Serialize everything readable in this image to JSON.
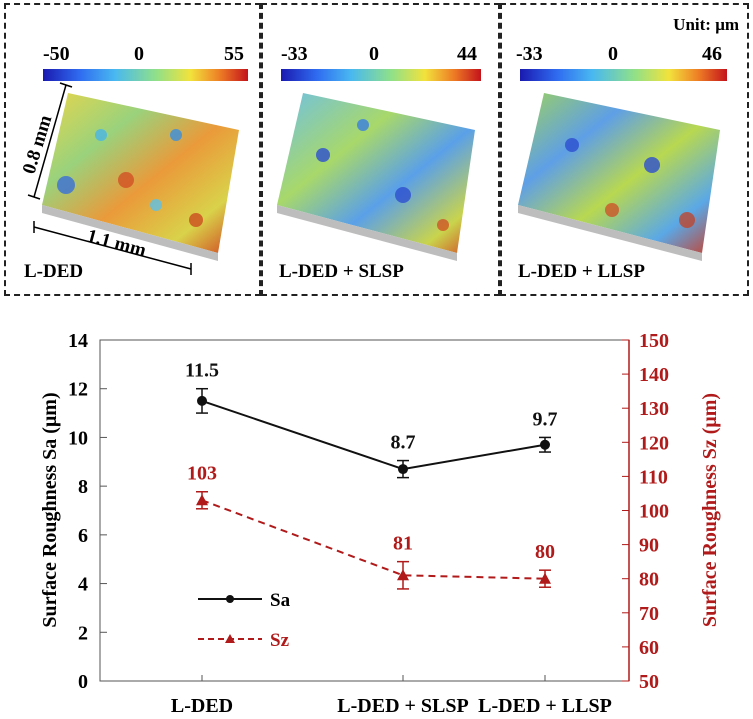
{
  "panels": [
    {
      "colorbar_min": "-50",
      "colorbar_mid": "0",
      "colorbar_max": "55",
      "caption": "L-DED",
      "dim_width": "1.1 mm",
      "dim_depth": "0.8 mm"
    },
    {
      "colorbar_min": "-33",
      "colorbar_mid": "0",
      "colorbar_max": "44",
      "caption": "L-DED + SLSP"
    },
    {
      "colorbar_min": "-33",
      "colorbar_mid": "0",
      "colorbar_max": "46",
      "caption": "L-DED + LLSP"
    }
  ],
  "unit_label": "Unit: μm",
  "colors": {
    "sa": "#111111",
    "sz": "#b01a1a"
  },
  "chart_data": {
    "type": "line",
    "categories": [
      "L-DED",
      "L-DED + SLSP",
      "L-DED + LLSP"
    ],
    "ylabel": "Surface Roughness Sa (μm)",
    "y2label": "Surface Roughness Sz (μm)",
    "ylim": [
      0,
      14
    ],
    "y2lim": [
      50,
      150
    ],
    "yticks": [
      "0",
      "2",
      "4",
      "6",
      "8",
      "10",
      "12",
      "14"
    ],
    "y2ticks": [
      "50",
      "60",
      "70",
      "80",
      "90",
      "100",
      "110",
      "120",
      "130",
      "140",
      "150"
    ],
    "legend_position": "bottom-left",
    "series": [
      {
        "name": "Sa",
        "axis": "left",
        "marker": "circle",
        "style": "solid",
        "values": [
          11.5,
          8.7,
          9.7
        ],
        "errors": [
          0.5,
          0.35,
          0.3
        ],
        "labels": [
          "11.5",
          "8.7",
          "9.7"
        ]
      },
      {
        "name": "Sz",
        "axis": "right",
        "marker": "triangle",
        "style": "dashed",
        "values": [
          103,
          81,
          80
        ],
        "errors": [
          2.5,
          4,
          2.5
        ],
        "labels": [
          "103",
          "81",
          "80"
        ]
      }
    ]
  }
}
